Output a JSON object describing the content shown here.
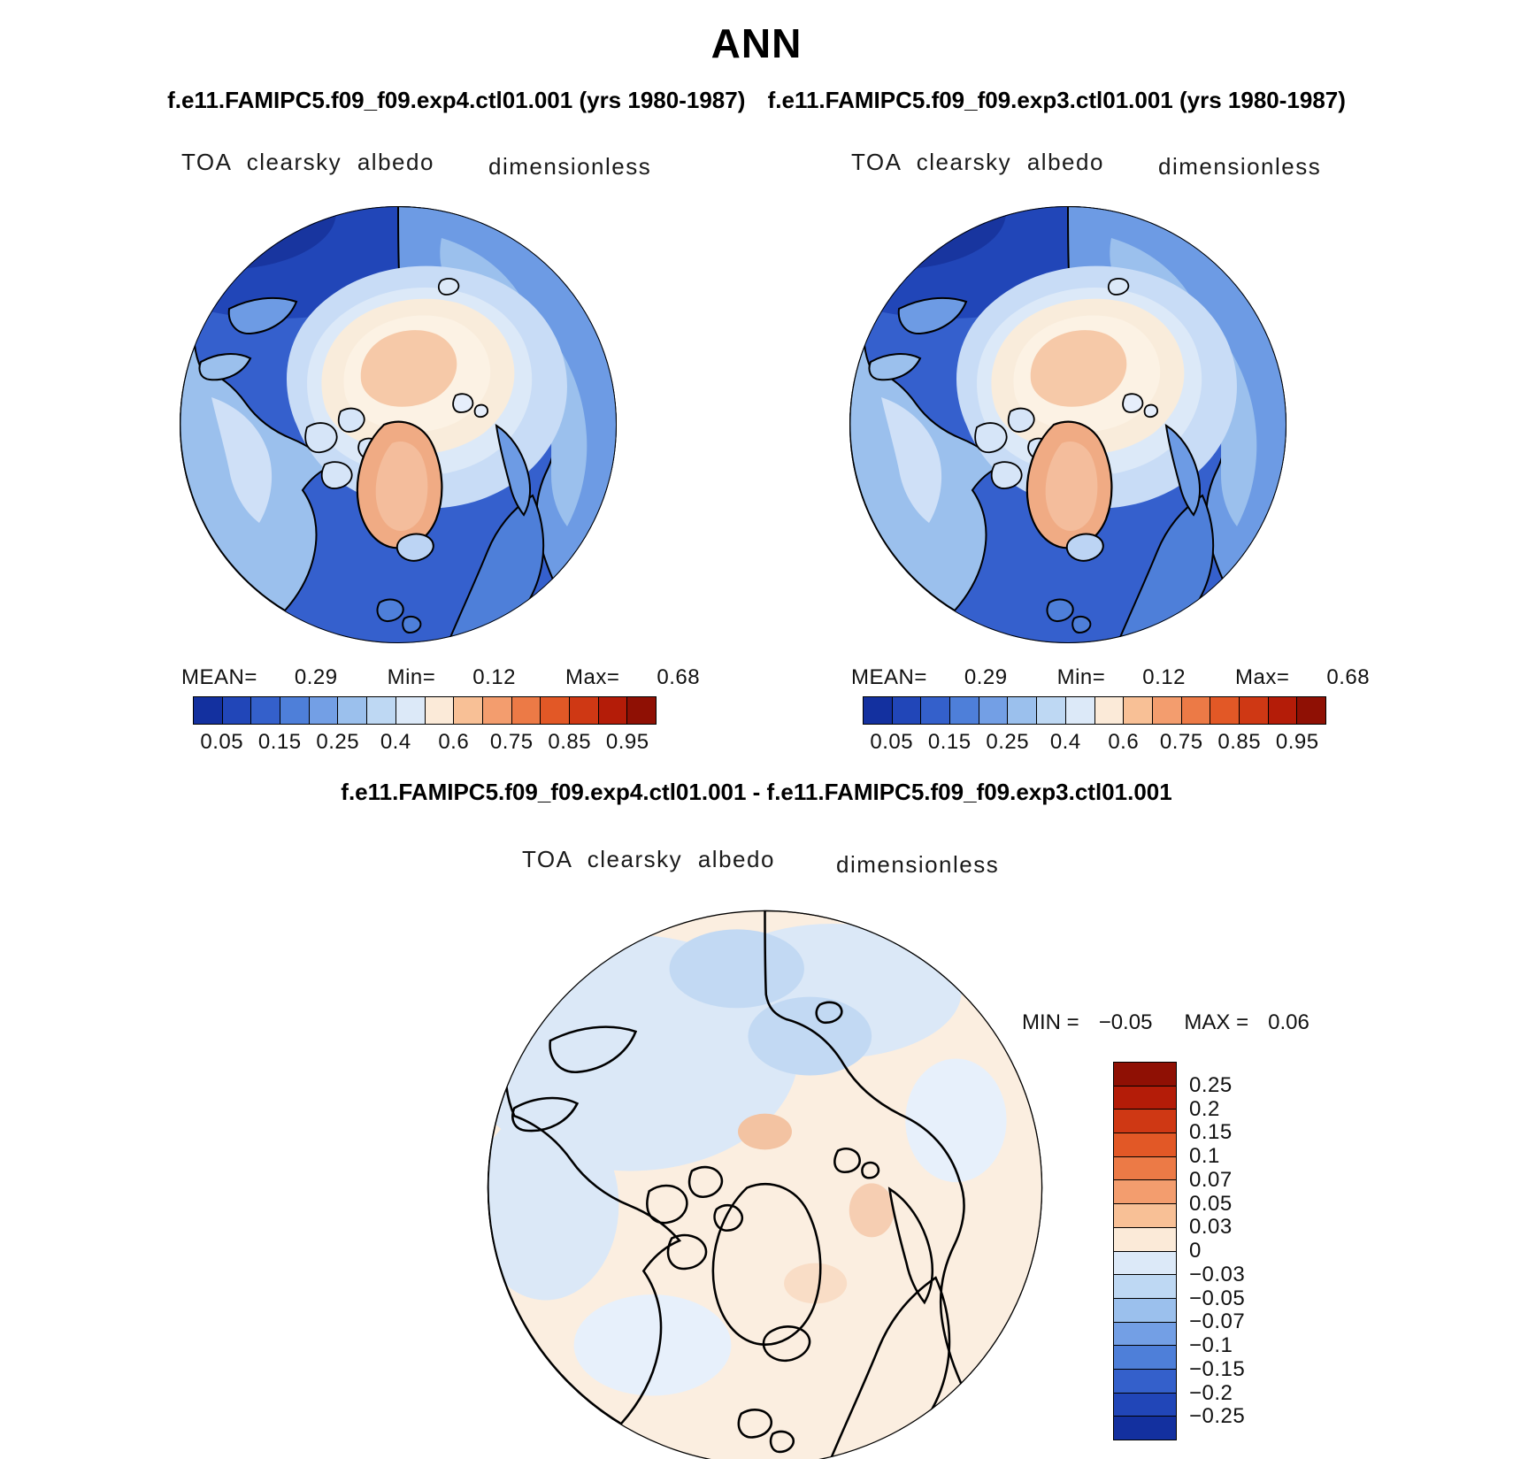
{
  "title": "ANN",
  "header": {
    "case_left": "f.e11.FAMIPC5.f09_f09.exp4.ctl01.001 (yrs 1980-1987)",
    "case_right": "f.e11.FAMIPC5.f09_f09.exp3.ctl01.001 (yrs 1980-1987)"
  },
  "diff_header": "f.e11.FAMIPC5.f09_f09.exp4.ctl01.001 - f.e11.FAMIPC5.f09_f09.exp3.ctl01.001",
  "panels": {
    "left": {
      "field": "TOA clearsky albedo",
      "units": "dimensionless",
      "stats": {
        "mean_label": "MEAN=",
        "mean": "0.29",
        "min_label": "Min=",
        "min": "0.12",
        "max_label": "Max=",
        "max": "0.68"
      }
    },
    "right": {
      "field": "TOA clearsky albedo",
      "units": "dimensionless",
      "stats": {
        "mean_label": "MEAN=",
        "mean": "0.29",
        "min_label": "Min=",
        "min": "0.12",
        "max_label": "Max=",
        "max": "0.68"
      }
    },
    "diff": {
      "field": "TOA clearsky albedo",
      "units": "dimensionless",
      "stats": {
        "min_label": "MIN =",
        "min": "−0.05",
        "max_label": "MAX =",
        "max": "0.06"
      }
    }
  },
  "albedo_colorbar": {
    "segments": 16,
    "colors": [
      "#13309f",
      "#2146b8",
      "#3460cb",
      "#4e7fd9",
      "#739fe5",
      "#9bc0ed",
      "#bed8f3",
      "#dce9f8",
      "#fbead8",
      "#f8c096",
      "#f39d6e",
      "#ec7a46",
      "#e25826",
      "#cf3814",
      "#b41c08",
      "#8f1004"
    ],
    "tick_labels": [
      "0.05",
      "0.15",
      "0.25",
      "0.4",
      "0.6",
      "0.75",
      "0.85",
      "0.95"
    ],
    "tick_positions": [
      1,
      3,
      5,
      7,
      9,
      11,
      13,
      15
    ]
  },
  "diff_colorbar": {
    "segments": 16,
    "colors": [
      "#8f1004",
      "#b41c08",
      "#cf3814",
      "#e25826",
      "#ec7a46",
      "#f39d6e",
      "#f8c096",
      "#fbead8",
      "#dce9f8",
      "#bed8f3",
      "#9bc0ed",
      "#739fe5",
      "#4e7fd9",
      "#3460cb",
      "#2146b8",
      "#13309f"
    ],
    "boundary_labels": [
      "0.25",
      "0.2",
      "0.15",
      "0.1",
      "0.07",
      "0.05",
      "0.03",
      "0",
      "−0.03",
      "−0.05",
      "−0.07",
      "−0.1",
      "−0.15",
      "−0.2",
      "−0.25"
    ]
  },
  "chart_data": [
    {
      "type": "heatmap",
      "subtype": "polar-stereographic-contour-map",
      "region": "Northern Hemisphere (Arctic, polar projection)",
      "title": "f.e11.FAMIPC5.f09_f09.exp4.ctl01.001 (yrs 1980-1987)",
      "season": "ANN",
      "field": "TOA clearsky albedo",
      "units": "dimensionless",
      "stats": {
        "mean": 0.29,
        "min": 0.12,
        "max": 0.68
      },
      "contour_levels": [
        0.05,
        0.1,
        0.15,
        0.2,
        0.25,
        0.3,
        0.4,
        0.5,
        0.6,
        0.7,
        0.75,
        0.8,
        0.85,
        0.9,
        0.95
      ],
      "labeled_levels": [
        0.05,
        0.15,
        0.25,
        0.4,
        0.6,
        0.75,
        0.85,
        0.95
      ],
      "palette": [
        "#13309f",
        "#2146b8",
        "#3460cb",
        "#4e7fd9",
        "#739fe5",
        "#9bc0ed",
        "#bed8f3",
        "#dce9f8",
        "#fbead8",
        "#f8c096",
        "#f39d6e",
        "#ec7a46",
        "#e25826",
        "#cf3814",
        "#b41c08",
        "#8f1004"
      ],
      "legend_position": "bottom",
      "coastline_color": "#000000",
      "notes": "Ocean low albedo (dark blue); central Arctic sea ice and Greenland high albedo (cream/peach)."
    },
    {
      "type": "heatmap",
      "subtype": "polar-stereographic-contour-map",
      "region": "Northern Hemisphere (Arctic, polar projection)",
      "title": "f.e11.FAMIPC5.f09_f09.exp3.ctl01.001 (yrs 1980-1987)",
      "season": "ANN",
      "field": "TOA clearsky albedo",
      "units": "dimensionless",
      "stats": {
        "mean": 0.29,
        "min": 0.12,
        "max": 0.68
      },
      "contour_levels": [
        0.05,
        0.1,
        0.15,
        0.2,
        0.25,
        0.3,
        0.4,
        0.5,
        0.6,
        0.7,
        0.75,
        0.8,
        0.85,
        0.9,
        0.95
      ],
      "labeled_levels": [
        0.05,
        0.15,
        0.25,
        0.4,
        0.6,
        0.75,
        0.85,
        0.95
      ],
      "palette": [
        "#13309f",
        "#2146b8",
        "#3460cb",
        "#4e7fd9",
        "#739fe5",
        "#9bc0ed",
        "#bed8f3",
        "#dce9f8",
        "#fbead8",
        "#f8c096",
        "#f39d6e",
        "#ec7a46",
        "#e25826",
        "#cf3814",
        "#b41c08",
        "#8f1004"
      ],
      "legend_position": "bottom",
      "coastline_color": "#000000"
    },
    {
      "type": "heatmap",
      "subtype": "polar-stereographic-contour-map-difference",
      "region": "Northern Hemisphere (Arctic, polar projection)",
      "title": "f.e11.FAMIPC5.f09_f09.exp4.ctl01.001 - f.e11.FAMIPC5.f09_f09.exp3.ctl01.001",
      "season": "ANN",
      "field": "TOA clearsky albedo",
      "units": "dimensionless",
      "stats": {
        "min": -0.05,
        "max": 0.06
      },
      "contour_levels": [
        -0.25,
        -0.2,
        -0.15,
        -0.1,
        -0.07,
        -0.05,
        -0.03,
        0,
        0.03,
        0.05,
        0.07,
        0.1,
        0.15,
        0.2,
        0.25
      ],
      "palette_top_to_bottom": [
        "#8f1004",
        "#b41c08",
        "#cf3814",
        "#e25826",
        "#ec7a46",
        "#f39d6e",
        "#f8c096",
        "#fbead8",
        "#dce9f8",
        "#bed8f3",
        "#9bc0ed",
        "#739fe5",
        "#4e7fd9",
        "#3460cb",
        "#2146b8",
        "#13309f"
      ],
      "legend_position": "right",
      "coastline_color": "#000000",
      "notes": "Near-zero differences: mostly pale cream (slightly positive) with pale blue (slightly negative) patches."
    }
  ]
}
